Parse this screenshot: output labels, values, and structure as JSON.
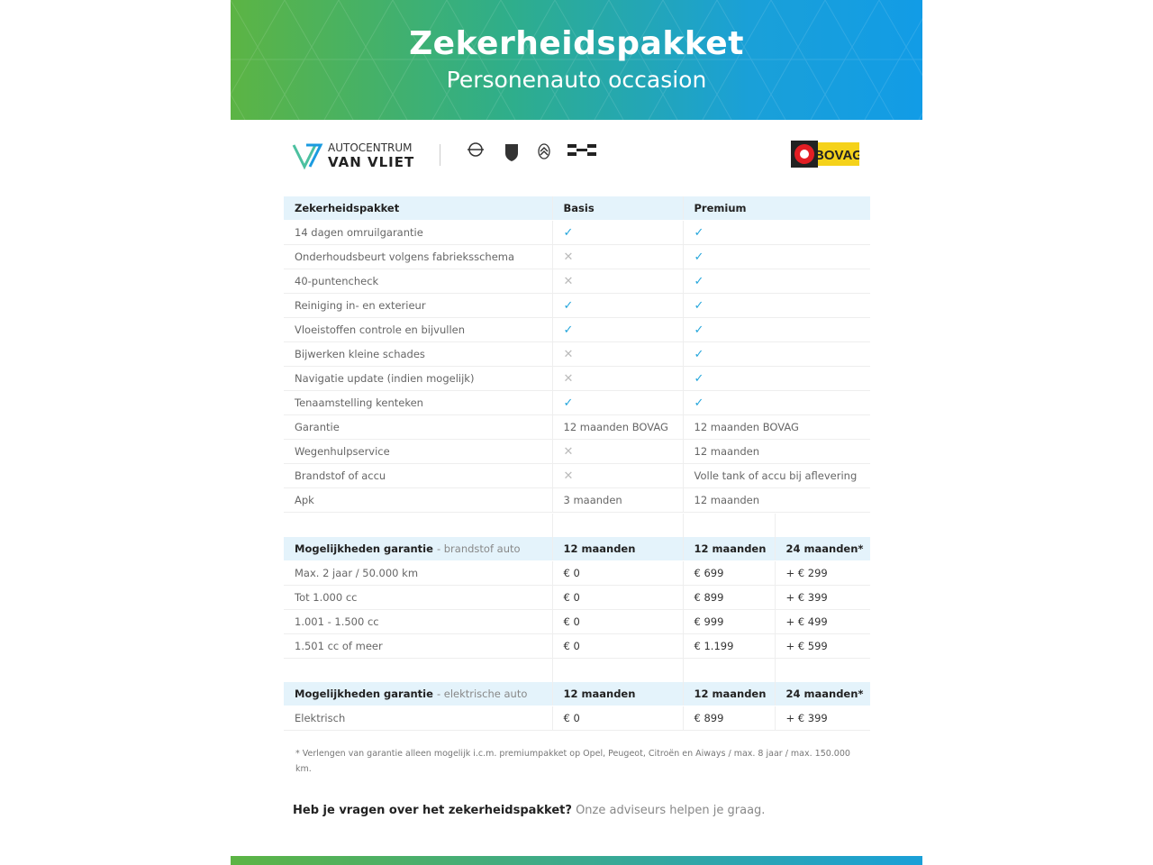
{
  "header": {
    "title": "Zekerheidspakket",
    "subtitle": "Personenauto occasion"
  },
  "logos": {
    "dealer_line1": "AUTOCENTRUM",
    "dealer_line2": "VAN VLIET",
    "brands": [
      "OPEL",
      "PEUGEOT",
      "CITROËN",
      "AIWAYS"
    ],
    "bovag": "BOVAG"
  },
  "packages": {
    "headers": [
      "Zekerheidspakket",
      "Basis",
      "Premium"
    ],
    "rows": [
      {
        "label": "14 dagen omruilgarantie",
        "basis": "check",
        "premium": "check"
      },
      {
        "label": "Onderhoudsbeurt volgens fabrieksschema",
        "basis": "cross",
        "premium": "check"
      },
      {
        "label": "40-puntencheck",
        "basis": "cross",
        "premium": "check"
      },
      {
        "label": "Reiniging in- en exterieur",
        "basis": "check",
        "premium": "check"
      },
      {
        "label": "Vloeistoffen controle en bijvullen",
        "basis": "check",
        "premium": "check"
      },
      {
        "label": "Bijwerken kleine schades",
        "basis": "cross",
        "premium": "check"
      },
      {
        "label": "Navigatie update (indien mogelijk)",
        "basis": "cross",
        "premium": "check"
      },
      {
        "label": "Tenaamstelling kenteken",
        "basis": "check",
        "premium": "check"
      },
      {
        "label": "Garantie",
        "basis": "12 maanden BOVAG",
        "premium": "12 maanden BOVAG"
      },
      {
        "label": "Wegenhulpservice",
        "basis": "cross",
        "premium": "12 maanden"
      },
      {
        "label": "Brandstof of accu",
        "basis": "cross",
        "premium": "Volle tank of accu bij aflevering"
      },
      {
        "label": "Apk",
        "basis": "3 maanden",
        "premium": "12 maanden"
      }
    ]
  },
  "fuel": {
    "title": "Mogelijkheden garantie",
    "subtitle": "- brandstof auto",
    "cols": [
      "12 maanden",
      "12 maanden",
      "24 maanden*"
    ],
    "rows": [
      [
        "Max. 2 jaar / 50.000 km",
        "€ 0",
        "€ 699",
        "+ € 299"
      ],
      [
        "Tot 1.000 cc",
        "€ 0",
        "€ 899",
        "+ € 399"
      ],
      [
        "1.001 - 1.500 cc",
        "€ 0",
        "€ 999",
        "+ € 499"
      ],
      [
        "1.501 cc of meer",
        "€ 0",
        "€ 1.199",
        "+ € 599"
      ]
    ]
  },
  "electric": {
    "title": "Mogelijkheden garantie",
    "subtitle": "- elektrische auto",
    "cols": [
      "12 maanden",
      "12 maanden",
      "24 maanden*"
    ],
    "rows": [
      [
        "Elektrisch",
        "€ 0",
        "€ 899",
        "+ € 399"
      ]
    ]
  },
  "footnote": "* Verlengen van garantie alleen mogelijk i.c.m. premiumpakket op Opel, Peugeot, Citroën en Aiways / max. 8 jaar / max. 150.000 km.",
  "question": {
    "bold": "Heb je vragen over het zekerheidspakket?",
    "rest": "Onze adviseurs helpen je graag."
  },
  "colors": {
    "green": "#5cb444",
    "blue": "#129ce6",
    "check": "#25a6dc",
    "header_row": "#e4f3fb",
    "bovag_yellow": "#f5d21a"
  }
}
